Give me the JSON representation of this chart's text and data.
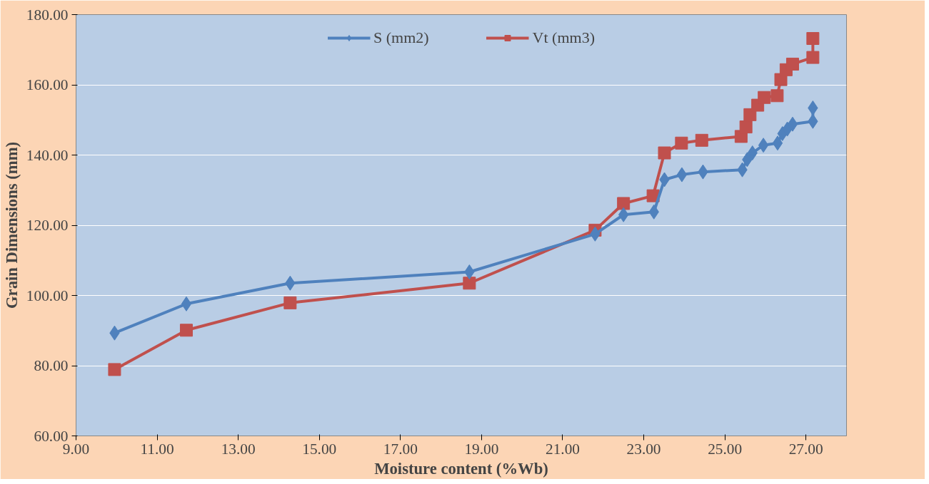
{
  "chart_data": {
    "type": "line",
    "xlabel": "Moisture content (%Wb)",
    "ylabel": "Grain Dimensions (mm)",
    "xlim": [
      9,
      28
    ],
    "ylim": [
      60,
      180
    ],
    "xticks": [
      {
        "value": 9,
        "label": "9.00"
      },
      {
        "value": 11,
        "label": "11.00"
      },
      {
        "value": 13,
        "label": "13.00"
      },
      {
        "value": 15,
        "label": "15.00"
      },
      {
        "value": 17,
        "label": "17.00"
      },
      {
        "value": 19,
        "label": "19.00"
      },
      {
        "value": 21,
        "label": "21.00"
      },
      {
        "value": 23,
        "label": "23.00"
      },
      {
        "value": 25,
        "label": "25.00"
      },
      {
        "value": 27,
        "label": "27.00"
      }
    ],
    "yticks": [
      {
        "value": 60,
        "label": "60.00"
      },
      {
        "value": 80,
        "label": "80.00"
      },
      {
        "value": 100,
        "label": "100.00"
      },
      {
        "value": 120,
        "label": "120.00"
      },
      {
        "value": 140,
        "label": "140.00"
      },
      {
        "value": 160,
        "label": "160.00"
      },
      {
        "value": 180,
        "label": "180.00"
      }
    ],
    "grid": "y",
    "legend": "top",
    "series": [
      {
        "name": "S (mm2)",
        "color": "#4f81bd",
        "marker": "diamond",
        "x": [
          9.95,
          11.72,
          14.28,
          18.7,
          21.8,
          22.5,
          23.25,
          23.51,
          23.94,
          24.46,
          25.43,
          25.55,
          25.68,
          25.95,
          26.3,
          26.42,
          26.54,
          26.67,
          27.17,
          27.17
        ],
        "values": [
          89.3,
          97.6,
          103.5,
          106.7,
          117.5,
          123.0,
          123.8,
          133.0,
          134.4,
          135.2,
          135.8,
          138.7,
          140.6,
          142.8,
          143.4,
          146.1,
          147.4,
          148.8,
          149.6,
          153.4
        ]
      },
      {
        "name": "Vt (mm3)",
        "color": "#c0504d",
        "marker": "square",
        "x": [
          9.95,
          11.72,
          14.28,
          18.7,
          21.8,
          22.5,
          23.23,
          23.51,
          23.93,
          24.43,
          25.4,
          25.52,
          25.62,
          25.81,
          25.97,
          26.29,
          26.38,
          26.51,
          26.67,
          27.17,
          27.17
        ],
        "values": [
          78.9,
          90.1,
          97.9,
          103.5,
          118.6,
          126.2,
          128.4,
          140.6,
          143.4,
          144.2,
          145.3,
          148.0,
          151.5,
          154.2,
          156.4,
          156.9,
          161.5,
          164.3,
          165.9,
          167.8,
          173.2
        ]
      }
    ]
  }
}
